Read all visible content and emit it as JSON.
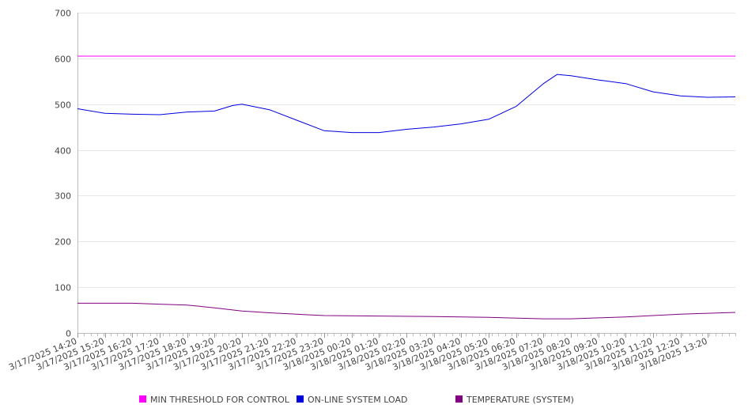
{
  "chart_data": {
    "type": "line",
    "title": "",
    "xlabel": "",
    "ylabel": "",
    "ylim": [
      0,
      700
    ],
    "y_ticks": [
      0,
      100,
      200,
      300,
      400,
      500,
      600,
      700
    ],
    "grid": true,
    "legend_position": "bottom",
    "x_start": "3/17/2025 14:20",
    "x_end": "3/18/2025 14:20",
    "x_tick_labels": [
      "3/17/2025 14:20",
      "3/17/2025 15:20",
      "3/17/2025 16:20",
      "3/17/2025 17:20",
      "3/17/2025 18:20",
      "3/17/2025 19:20",
      "3/17/2025 20:20",
      "3/17/2025 21:20",
      "3/17/2025 22:20",
      "3/17/2025 23:20",
      "3/18/2025 00:20",
      "3/18/2025 01:20",
      "3/18/2025 02:20",
      "3/18/2025 03:20",
      "3/18/2025 04:20",
      "3/18/2025 05:20",
      "3/18/2025 06:20",
      "3/18/2025 07:20",
      "3/18/2025 08:20",
      "3/18/2025 09:20",
      "3/18/2025 10:20",
      "3/18/2025 11:20",
      "3/18/2025 12:20",
      "3/18/2025 13:20"
    ],
    "series": [
      {
        "name": "MIN THRESHOLD FOR CONTROL",
        "color": "#ff00ff",
        "x": [
          "3/17/2025 14:20",
          "3/18/2025 14:20"
        ],
        "y": [
          605,
          605
        ]
      },
      {
        "name": "ON-LINE SYSTEM LOAD",
        "color": "#0000dd",
        "x": [
          "3/17/2025 14:20",
          "3/17/2025 15:20",
          "3/17/2025 16:20",
          "3/17/2025 17:20",
          "3/17/2025 18:20",
          "3/17/2025 19:20",
          "3/17/2025 20:00",
          "3/17/2025 20:20",
          "3/17/2025 21:20",
          "3/17/2025 22:20",
          "3/17/2025 23:20",
          "3/18/2025 00:20",
          "3/18/2025 01:20",
          "3/18/2025 02:20",
          "3/18/2025 03:20",
          "3/18/2025 04:20",
          "3/18/2025 05:20",
          "3/18/2025 06:20",
          "3/18/2025 07:20",
          "3/18/2025 07:50",
          "3/18/2025 08:20",
          "3/18/2025 09:20",
          "3/18/2025 10:20",
          "3/18/2025 11:20",
          "3/18/2025 12:20",
          "3/18/2025 13:20",
          "3/18/2025 14:20"
        ],
        "y": [
          490,
          480,
          478,
          477,
          483,
          485,
          497,
          500,
          488,
          465,
          442,
          438,
          438,
          445,
          450,
          457,
          467,
          495,
          545,
          565,
          562,
          553,
          545,
          527,
          518,
          515,
          516
        ]
      },
      {
        "name": "TEMPERATURE (SYSTEM)",
        "color": "#800080",
        "x": [
          "3/17/2025 14:20",
          "3/17/2025 16:20",
          "3/17/2025 17:20",
          "3/17/2025 18:20",
          "3/17/2025 19:20",
          "3/17/2025 20:20",
          "3/17/2025 21:20",
          "3/17/2025 22:20",
          "3/17/2025 23:20",
          "3/18/2025 01:20",
          "3/18/2025 03:20",
          "3/18/2025 05:20",
          "3/18/2025 07:20",
          "3/18/2025 08:20",
          "3/18/2025 09:20",
          "3/18/2025 10:20",
          "3/18/2025 11:20",
          "3/18/2025 12:20",
          "3/18/2025 13:20",
          "3/18/2025 14:20"
        ],
        "y": [
          65,
          65,
          63,
          61,
          55,
          48,
          44,
          41,
          38,
          37,
          36,
          34,
          31,
          31,
          33,
          35,
          38,
          41,
          43,
          45
        ]
      }
    ]
  }
}
